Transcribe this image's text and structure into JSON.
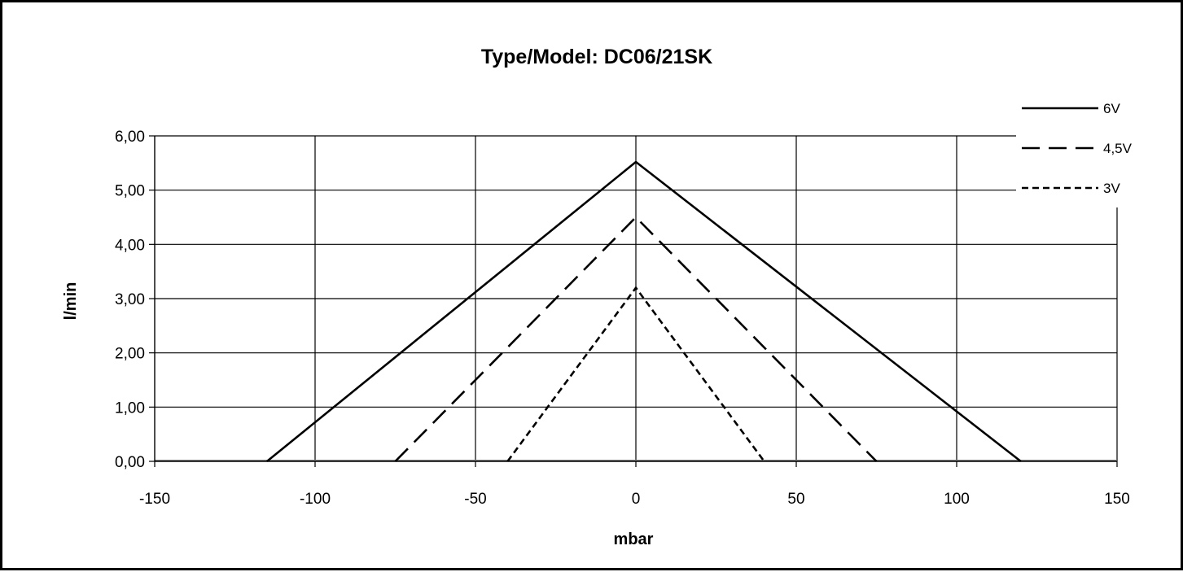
{
  "chart_data": {
    "type": "line",
    "title": "Type/Model: DC06/21SK",
    "xlabel": "mbar",
    "ylabel": "l/min",
    "xlim": [
      -150,
      150
    ],
    "ylim": [
      0,
      6
    ],
    "x_ticks": [
      -150,
      -100,
      -50,
      0,
      50,
      100,
      150
    ],
    "x_tick_labels": [
      "-150",
      "-100",
      "-50",
      "0",
      "50",
      "100",
      "150"
    ],
    "y_ticks": [
      0,
      1,
      2,
      3,
      4,
      5,
      6
    ],
    "y_tick_labels": [
      "0,00",
      "1,00",
      "2,00",
      "3,00",
      "4,00",
      "5,00",
      "6,00"
    ],
    "grid": true,
    "legend_position": "top-right",
    "series": [
      {
        "name": "6V",
        "style": "solid",
        "x": [
          -115,
          0,
          120
        ],
        "y": [
          0,
          5.52,
          0
        ]
      },
      {
        "name": "4,5V",
        "style": "long-dash",
        "x": [
          -75,
          0,
          75
        ],
        "y": [
          0,
          4.5,
          0
        ]
      },
      {
        "name": "3V",
        "style": "short-dash",
        "x": [
          -40,
          0,
          40
        ],
        "y": [
          0,
          3.2,
          0
        ]
      }
    ],
    "baseline": {
      "x": [
        -150,
        150
      ],
      "y": [
        0,
        0
      ],
      "color": "#808080"
    }
  }
}
